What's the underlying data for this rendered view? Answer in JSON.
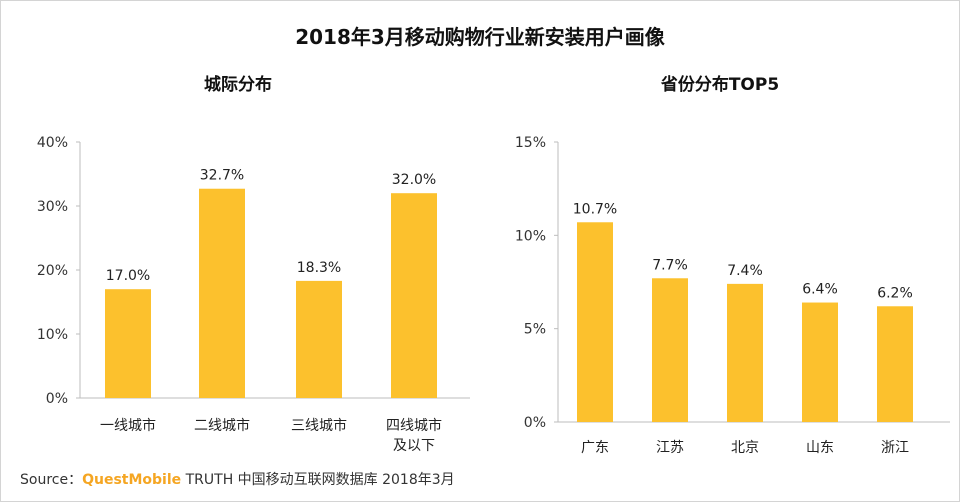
{
  "title": "2018年3月移动购物行业新安装用户画像",
  "colors": {
    "bar": "#fcc12d",
    "axis": "#bdbdbd",
    "text": "#333333"
  },
  "source": {
    "prefix": "Source：",
    "brand": "QuestMobile",
    "rest": "TRUTH 中国移动互联网数据库 2018年3月"
  },
  "chart_data": [
    {
      "type": "bar",
      "title": "城际分布",
      "categories": [
        "一线城市",
        "二线城市",
        "三线城市",
        "四线城市\n及以下"
      ],
      "values": [
        17.0,
        32.7,
        18.3,
        32.0
      ],
      "data_labels": [
        "17.0%",
        "32.7%",
        "18.3%",
        "32.0%"
      ],
      "yticks": [
        0,
        10,
        20,
        30,
        40
      ],
      "ytick_labels": [
        "0%",
        "10%",
        "20%",
        "30%",
        "40%"
      ],
      "ylim": [
        0,
        40
      ],
      "xlabel": "",
      "ylabel": "",
      "grid": false
    },
    {
      "type": "bar",
      "title": "省份分布TOP5",
      "categories": [
        "广东",
        "江苏",
        "北京",
        "山东",
        "浙江"
      ],
      "values": [
        10.7,
        7.7,
        7.4,
        6.4,
        6.2
      ],
      "data_labels": [
        "10.7%",
        "7.7%",
        "7.4%",
        "6.4%",
        "6.2%"
      ],
      "yticks": [
        0,
        5,
        10,
        15
      ],
      "ytick_labels": [
        "0%",
        "5%",
        "10%",
        "15%"
      ],
      "ylim": [
        0,
        15
      ],
      "xlabel": "",
      "ylabel": "",
      "grid": false
    }
  ]
}
